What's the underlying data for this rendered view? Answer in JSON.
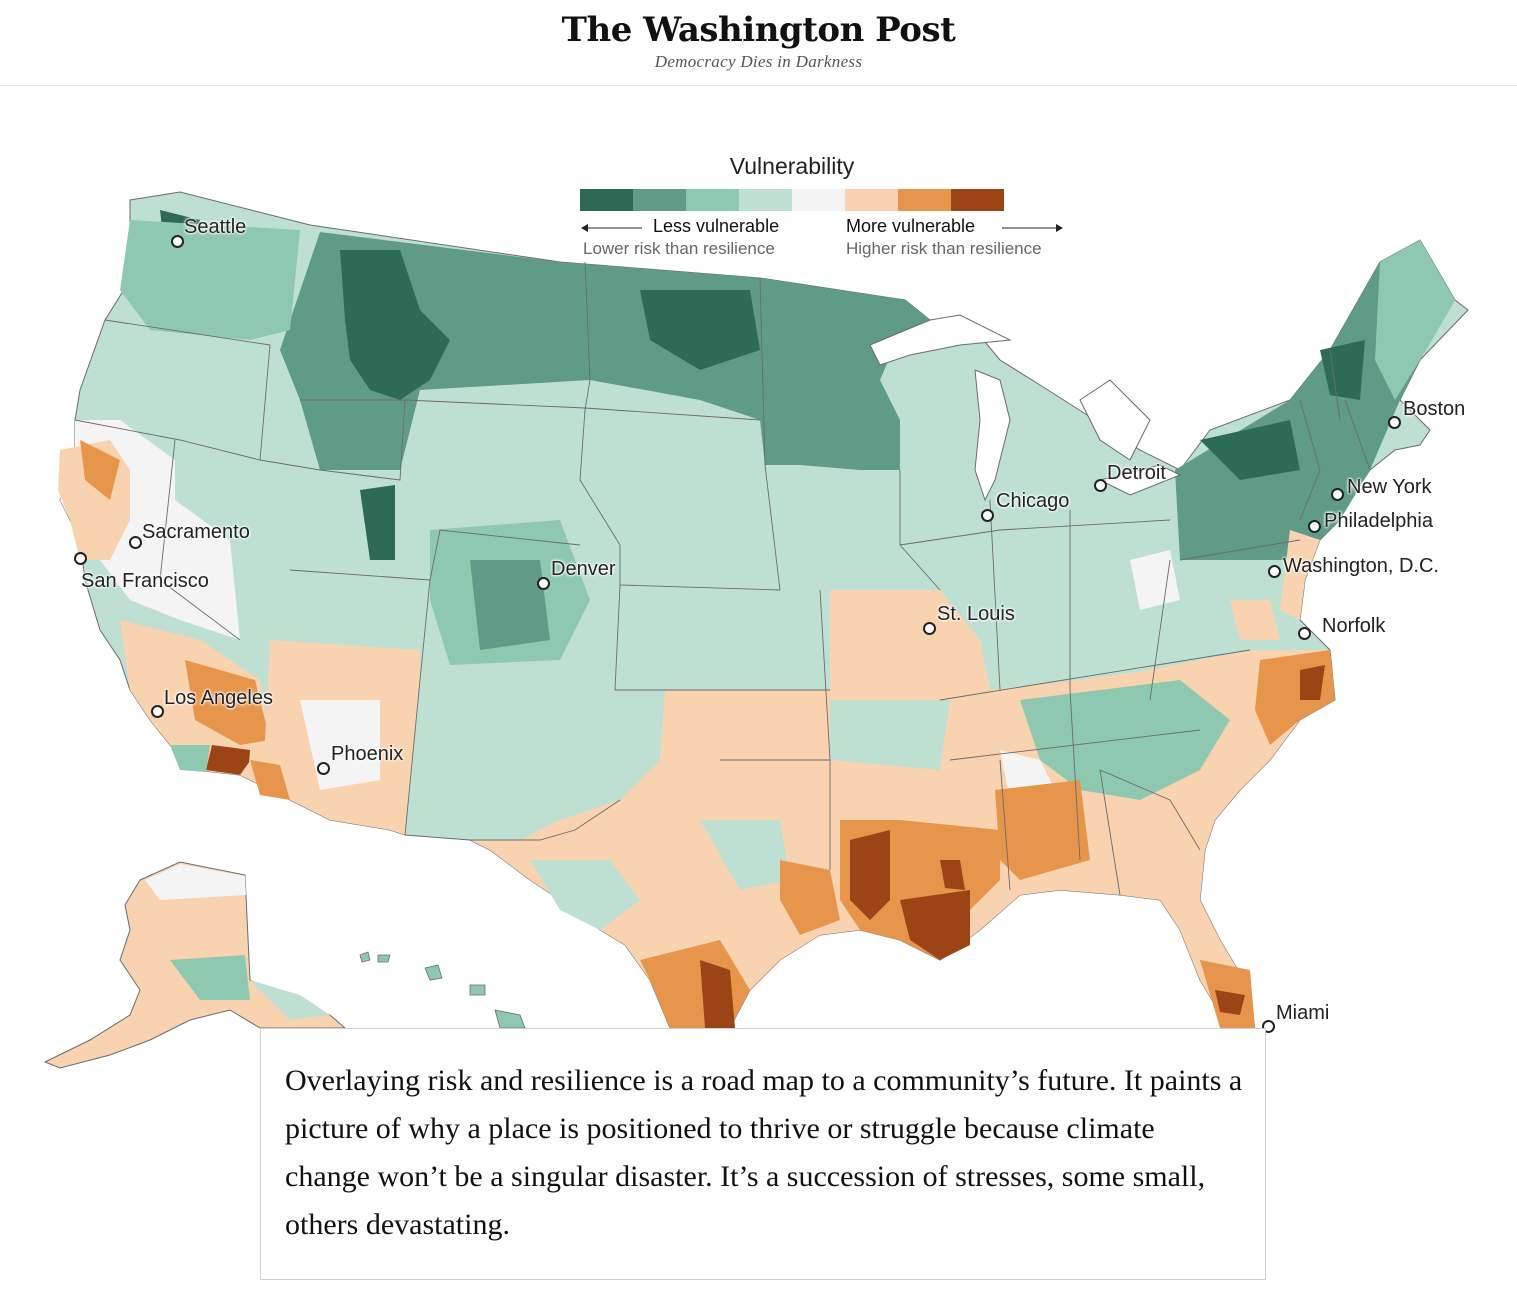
{
  "header": {
    "brand": "The Washington Post",
    "tagline": "Democracy Dies in Darkness"
  },
  "legend": {
    "title": "Vulnerability",
    "colors": [
      "#2e6b57",
      "#5f9b86",
      "#8fc8b1",
      "#bde0d3",
      "#f4f4f4",
      "#f9d3b0",
      "#e8954c",
      "#9c4416"
    ],
    "less_label": "Less vulnerable",
    "less_sub": "Lower risk than resilience",
    "more_label": "More vulnerable",
    "more_sub": "Higher risk than resilience"
  },
  "cities": [
    {
      "id": "seattle",
      "name": "Seattle"
    },
    {
      "id": "sacramento",
      "name": "Sacramento"
    },
    {
      "id": "san-francisco",
      "name": "San Francisco"
    },
    {
      "id": "los-angeles",
      "name": "Los Angeles"
    },
    {
      "id": "phoenix",
      "name": "Phoenix"
    },
    {
      "id": "denver",
      "name": "Denver"
    },
    {
      "id": "st-louis",
      "name": "St. Louis"
    },
    {
      "id": "chicago",
      "name": "Chicago"
    },
    {
      "id": "detroit",
      "name": "Detroit"
    },
    {
      "id": "boston",
      "name": "Boston"
    },
    {
      "id": "new-york",
      "name": "New York"
    },
    {
      "id": "philadelphia",
      "name": "Philadelphia"
    },
    {
      "id": "washington-dc",
      "name": "Washington, D.C."
    },
    {
      "id": "norfolk",
      "name": "Norfolk"
    },
    {
      "id": "miami",
      "name": "Miami"
    }
  ],
  "quote": "Overlaying risk and resilience is a road map to a community’s future. It paints a picture of why a place is positioned to thrive or struggle because climate change won’t be a singular disaster. It’s a succession of stresses, some small, others devastating."
}
